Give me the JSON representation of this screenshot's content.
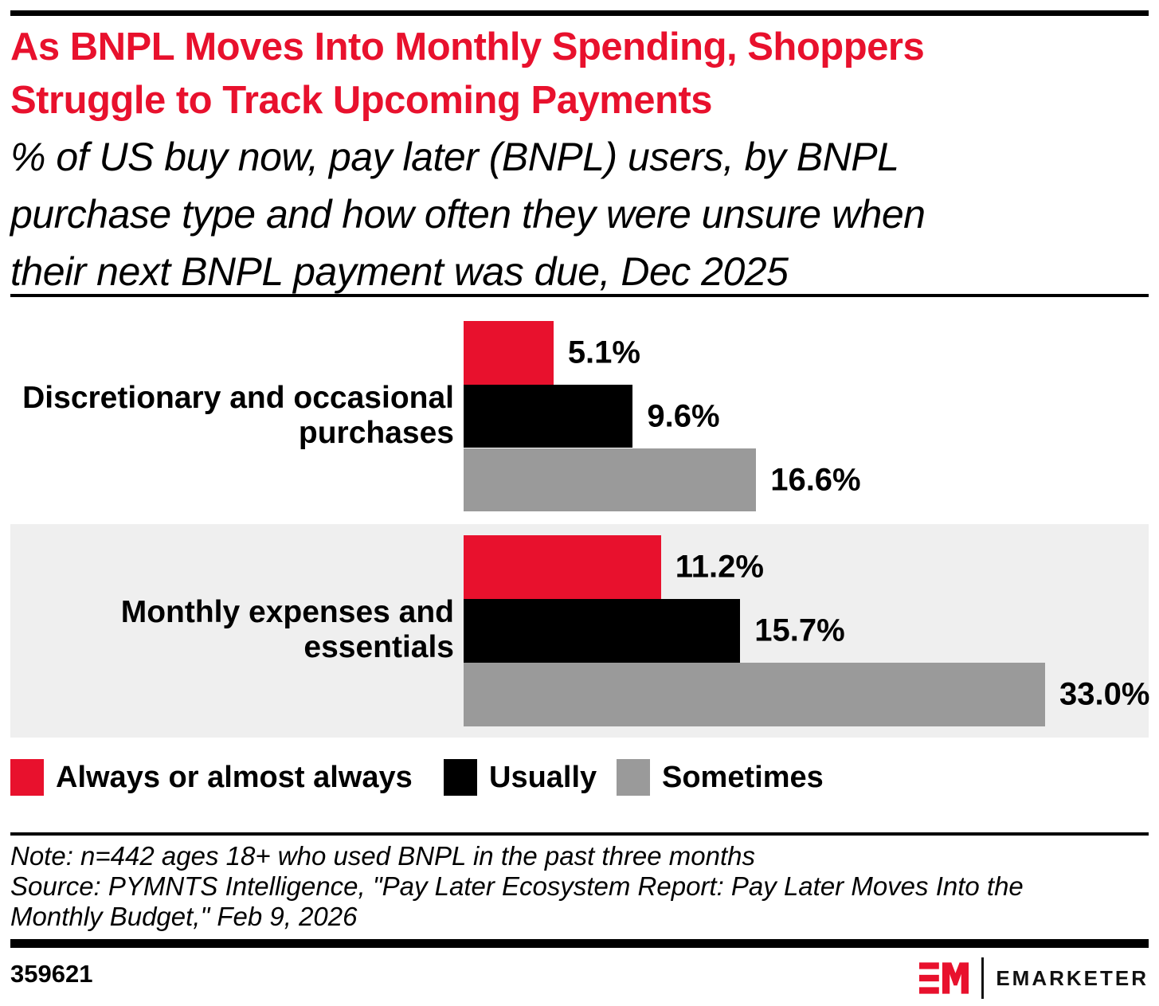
{
  "header": {
    "title_lines": [
      "As BNPL Moves Into Monthly Spending, Shoppers",
      "Struggle to Track Upcoming Payments"
    ],
    "subtitle_lines": [
      "% of US buy now, pay later (BNPL) users, by BNPL",
      "purchase type and how often they were unsure when",
      "their next BNPL payment was due, Dec 2025"
    ],
    "title_color": "#e8112d"
  },
  "chart_data": {
    "type": "bar",
    "orientation": "horizontal",
    "title": "As BNPL Moves Into Monthly Spending, Shoppers Struggle to Track Upcoming Payments",
    "subtitle": "% of US buy now, pay later (BNPL) users, by BNPL purchase type and how often they were unsure when their next BNPL payment was due, Dec 2025",
    "categories": [
      "Discretionary and occasional purchases",
      "Monthly expenses and essentials"
    ],
    "category_label_lines": [
      [
        "Discretionary and occasional",
        "purchases"
      ],
      [
        "Monthly expenses and",
        "essentials"
      ]
    ],
    "series": [
      {
        "name": "Always or almost always",
        "color": "#e8112d",
        "values": [
          5.1,
          11.2
        ]
      },
      {
        "name": "Usually",
        "color": "#000000",
        "values": [
          9.6,
          15.7
        ]
      },
      {
        "name": "Sometimes",
        "color": "#9a9a9a",
        "values": [
          16.6,
          33.0
        ]
      }
    ],
    "value_labels": [
      [
        "5.1%",
        "9.6%",
        "16.6%"
      ],
      [
        "11.2%",
        "15.7%",
        "33.0%"
      ]
    ],
    "xlim": [
      0,
      33
    ],
    "grid": false,
    "legend_position": "bottom",
    "highlight_band": {
      "category_index": 1,
      "color": "#efefef"
    }
  },
  "legend": {
    "items": [
      {
        "label": "Always or almost always",
        "color": "#e8112d"
      },
      {
        "label": "Usually",
        "color": "#000000"
      },
      {
        "label": "Sometimes",
        "color": "#9a9a9a"
      }
    ]
  },
  "footnotes": {
    "note": "Note: n=442 ages 18+ who used BNPL in the past three months",
    "source_lines": [
      "Source: PYMNTS Intelligence, \"Pay Later Ecosystem Report: Pay Later Moves Into the",
      "Monthly Budget,\" Feb 9, 2026"
    ]
  },
  "footer": {
    "chart_id": "359621",
    "brand_wordmark": "EMARKETER",
    "brand_monogram": "EM",
    "brand_red": "#e8112d"
  }
}
